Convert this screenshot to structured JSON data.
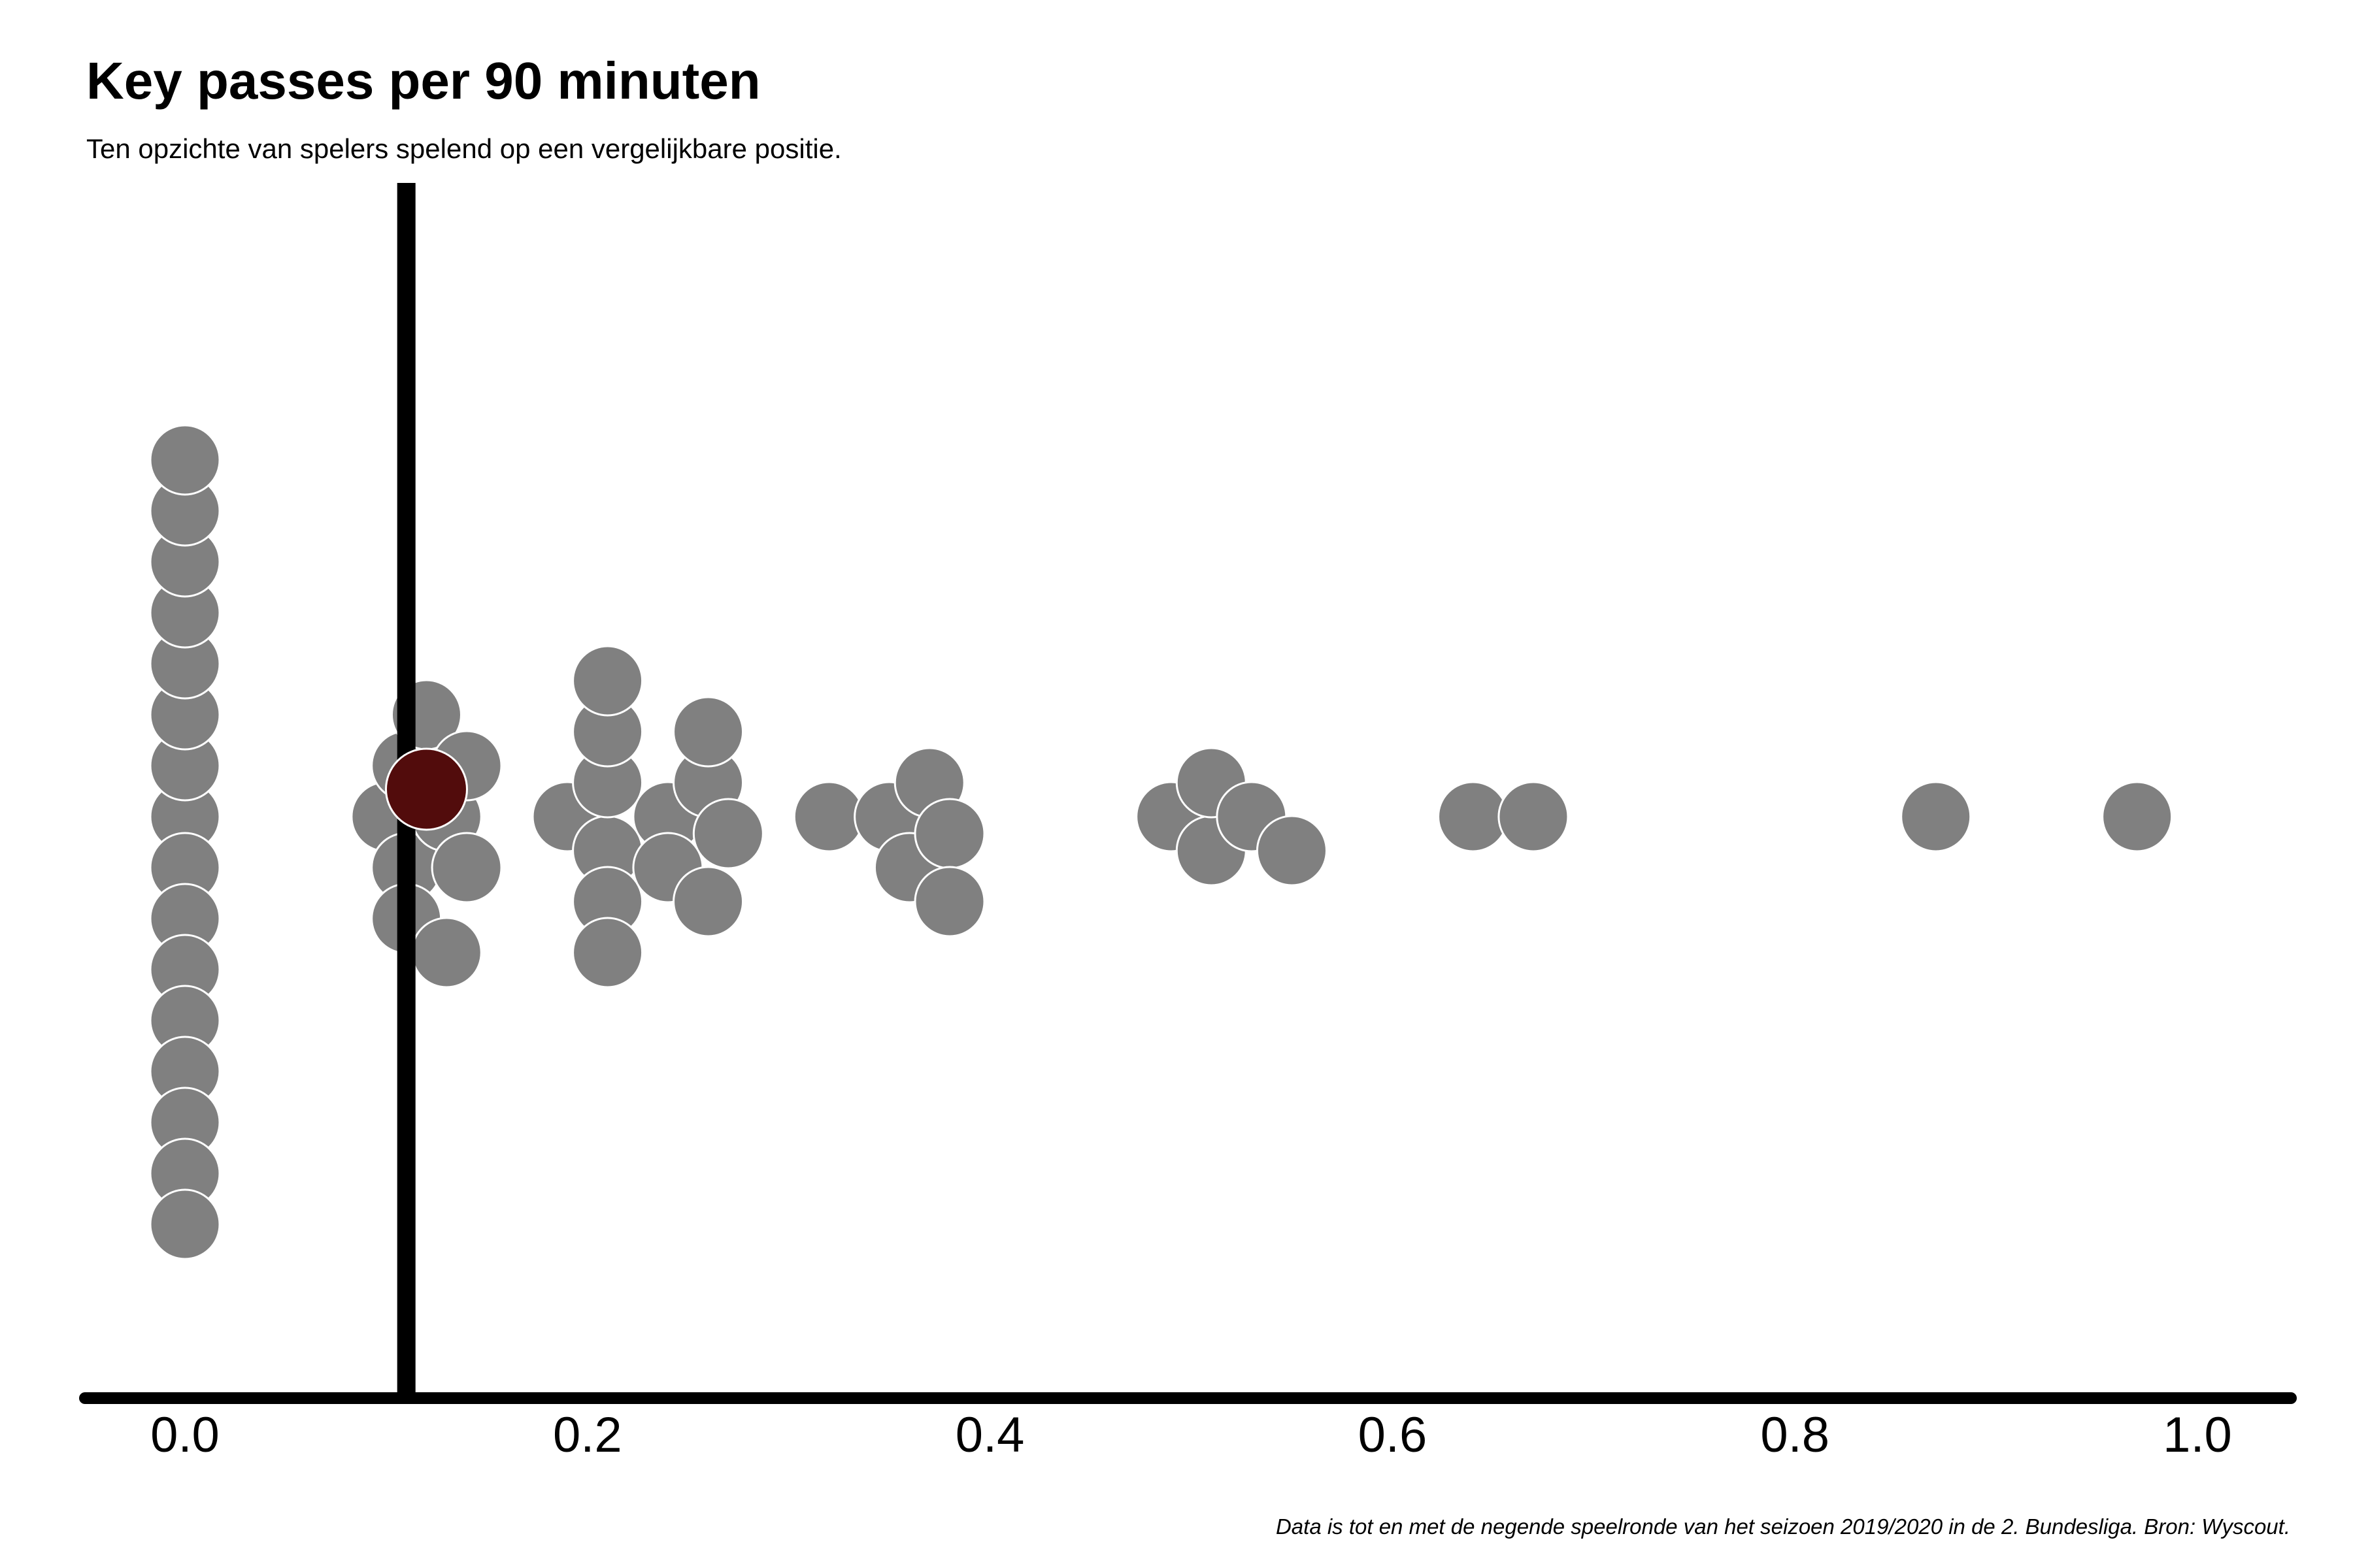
{
  "chart_data": {
    "type": "scatter",
    "subtype": "beeswarm",
    "title": "Key passes per 90 minuten",
    "subtitle": "Ten opzichte van spelers spelend op een vergelijkbare positie.",
    "caption": "Data is tot en met de negende speelronde van het seizoen 2019/2020 in de 2. Bundesliga. Bron: Wyscout.",
    "xlabel": "",
    "ylabel": "",
    "xlim": [
      -0.05,
      1.05
    ],
    "x_ticks": [
      0.0,
      0.2,
      0.4,
      0.6,
      0.8,
      1.0
    ],
    "x_tick_labels": [
      "0.0",
      "0.2",
      "0.4",
      "0.6",
      "0.8",
      "1.0"
    ],
    "grid": false,
    "reference_line": {
      "x": 0.11
    },
    "colors": {
      "others": "#808080",
      "highlight": "#520c0c",
      "point_outline": "#ffffff",
      "axis": "#000000"
    },
    "points": [
      {
        "x": 0.0
      },
      {
        "x": 0.0
      },
      {
        "x": 0.0
      },
      {
        "x": 0.0
      },
      {
        "x": 0.0
      },
      {
        "x": 0.0
      },
      {
        "x": 0.0
      },
      {
        "x": 0.0
      },
      {
        "x": 0.0
      },
      {
        "x": 0.0
      },
      {
        "x": 0.0
      },
      {
        "x": 0.0
      },
      {
        "x": 0.0
      },
      {
        "x": 0.0
      },
      {
        "x": 0.0
      },
      {
        "x": 0.0
      },
      {
        "x": 0.1
      },
      {
        "x": 0.11
      },
      {
        "x": 0.11
      },
      {
        "x": 0.11
      },
      {
        "x": 0.12
      },
      {
        "x": 0.13
      },
      {
        "x": 0.13
      },
      {
        "x": 0.14
      },
      {
        "x": 0.14
      },
      {
        "x": 0.19
      },
      {
        "x": 0.21
      },
      {
        "x": 0.21
      },
      {
        "x": 0.21
      },
      {
        "x": 0.21
      },
      {
        "x": 0.21
      },
      {
        "x": 0.21
      },
      {
        "x": 0.24
      },
      {
        "x": 0.24
      },
      {
        "x": 0.26
      },
      {
        "x": 0.26
      },
      {
        "x": 0.26
      },
      {
        "x": 0.27
      },
      {
        "x": 0.32
      },
      {
        "x": 0.35
      },
      {
        "x": 0.36
      },
      {
        "x": 0.37
      },
      {
        "x": 0.38
      },
      {
        "x": 0.38
      },
      {
        "x": 0.49
      },
      {
        "x": 0.51
      },
      {
        "x": 0.51
      },
      {
        "x": 0.53
      },
      {
        "x": 0.55
      },
      {
        "x": 0.64
      },
      {
        "x": 0.67
      },
      {
        "x": 0.87
      },
      {
        "x": 0.97
      }
    ],
    "highlight": {
      "x": 0.12
    }
  }
}
